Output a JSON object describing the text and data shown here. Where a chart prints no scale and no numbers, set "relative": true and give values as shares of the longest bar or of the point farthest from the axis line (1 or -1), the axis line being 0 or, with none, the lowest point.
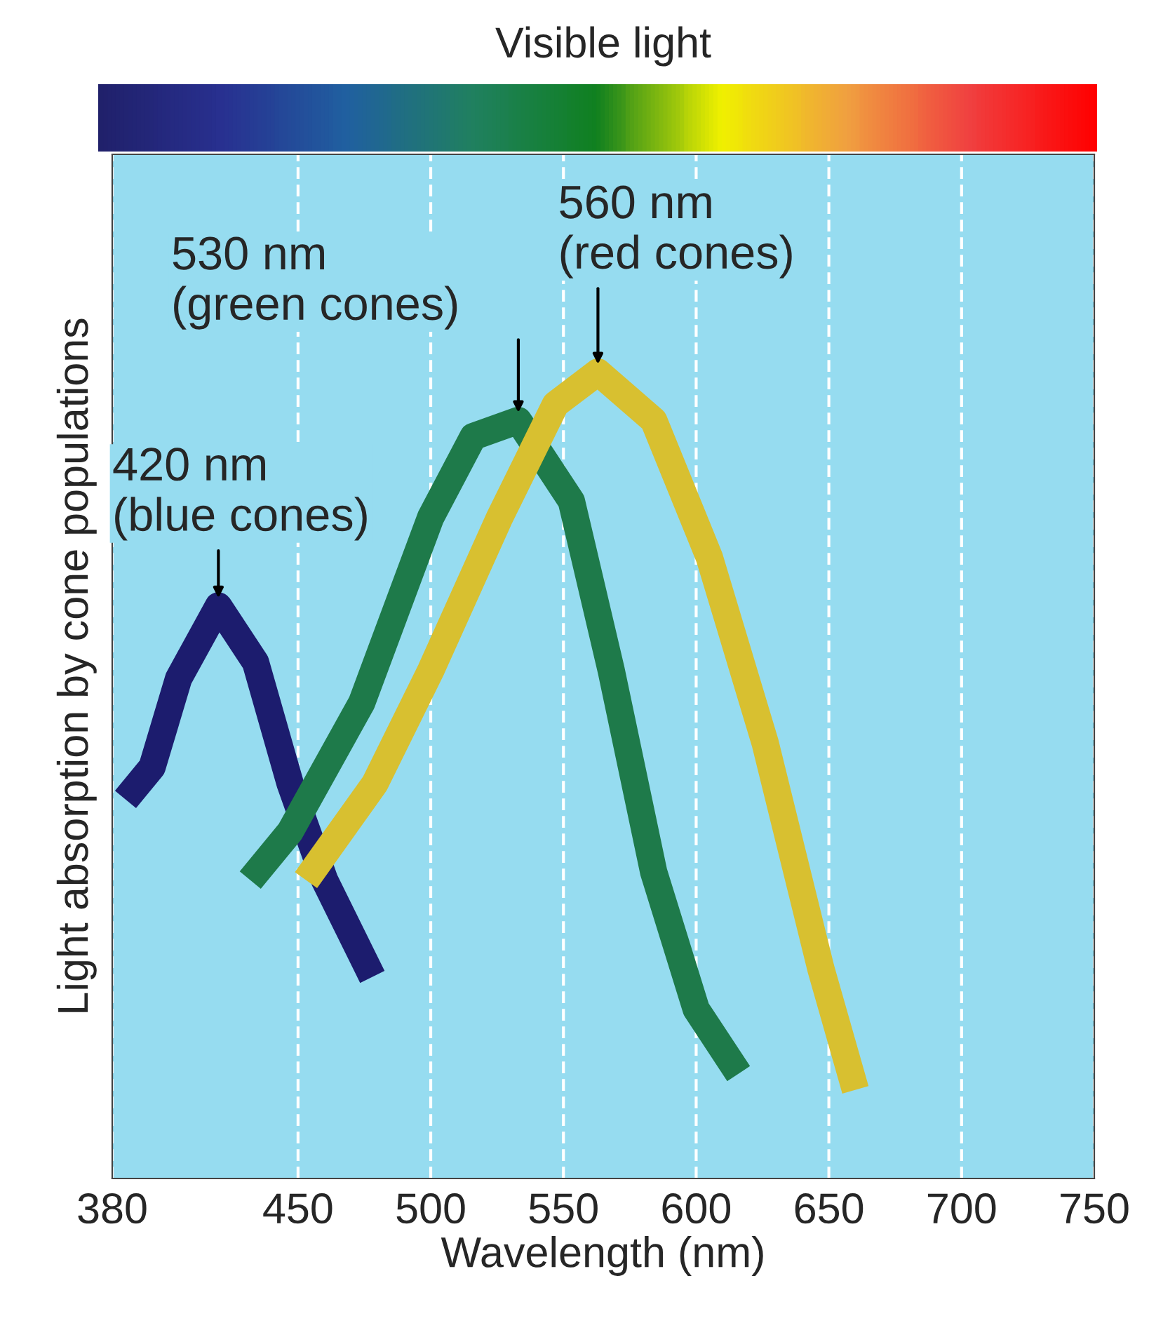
{
  "chart_data": {
    "type": "line",
    "relative": true,
    "xlabel": "Wavelength (nm)",
    "ylabel": "Light absorption by cone populations",
    "xlim": [
      380,
      750
    ],
    "xticks": [
      380,
      450,
      500,
      550,
      600,
      650,
      700,
      750
    ],
    "grid": "x",
    "series": [
      {
        "color": "#1c1c6e",
        "x": [
          385,
          395,
          405,
          420,
          434,
          447,
          460,
          478
        ],
        "values": [
          0.47,
          0.51,
          0.62,
          0.71,
          0.64,
          0.49,
          0.37,
          0.25
        ]
      },
      {
        "color": "#1e7a4a",
        "x": [
          432,
          447,
          474,
          500,
          516,
          533,
          553,
          568,
          584,
          600,
          616
        ],
        "values": [
          0.37,
          0.43,
          0.59,
          0.82,
          0.92,
          0.94,
          0.84,
          0.63,
          0.38,
          0.21,
          0.13
        ]
      },
      {
        "color": "#d8c030",
        "x": [
          453,
          479,
          500,
          526,
          547,
          563,
          584,
          605,
          626,
          647,
          660
        ],
        "values": [
          0.37,
          0.49,
          0.63,
          0.82,
          0.96,
          1.0,
          0.94,
          0.77,
          0.54,
          0.26,
          0.11
        ]
      }
    ],
    "annotations": [
      {
        "text": "420 nm\n(blue cones)",
        "x": 420,
        "y": 0.71
      },
      {
        "text": "530 nm\n(green cones)",
        "x": 533,
        "y": 0.94
      },
      {
        "text": "560 nm\n(red cones)",
        "x": 563,
        "y": 1.0
      },
      "Visible light"
    ]
  }
}
